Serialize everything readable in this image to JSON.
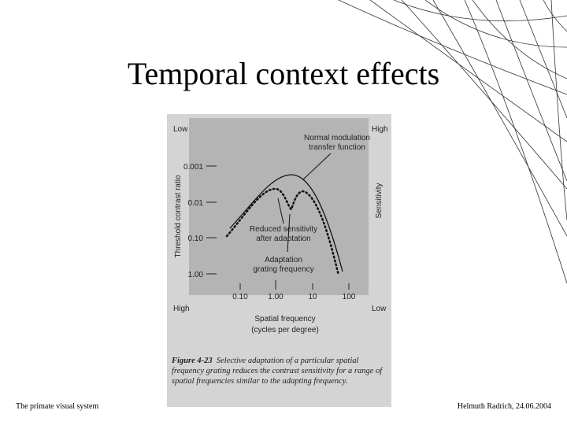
{
  "slide": {
    "title": "Temporal context effects",
    "figure": {
      "y_axis_label": "Threshold contrast ratio",
      "y2_axis_label": "Sensitivity",
      "corner_top_left": "Low",
      "corner_top_right": "High",
      "corner_bottom_left": "High",
      "corner_bottom_right": "Low",
      "yticks": [
        "0.001",
        "0.01",
        "0.10",
        "1.00"
      ],
      "xticks": [
        "0.10",
        "1.00",
        "10",
        "100"
      ],
      "x_axis_label": [
        "Spatial frequency",
        "(cycles per degree)"
      ],
      "annotations": [
        [
          "Normal modulation",
          "transfer function"
        ],
        [
          "Reduced sensitivity",
          "after adaptation"
        ],
        [
          "Adaptation",
          "grating frequency"
        ]
      ],
      "caption_label": "Figure 4-23",
      "caption_text": "Selective adaptation of a particular spatial frequency grating reduces the contrast sensitivity for a range of spatial frequencies similar to the adapting frequency."
    },
    "footer_left": "The primate visual system",
    "footer_right": "Helmuth Radrich, 24.06.2004"
  }
}
